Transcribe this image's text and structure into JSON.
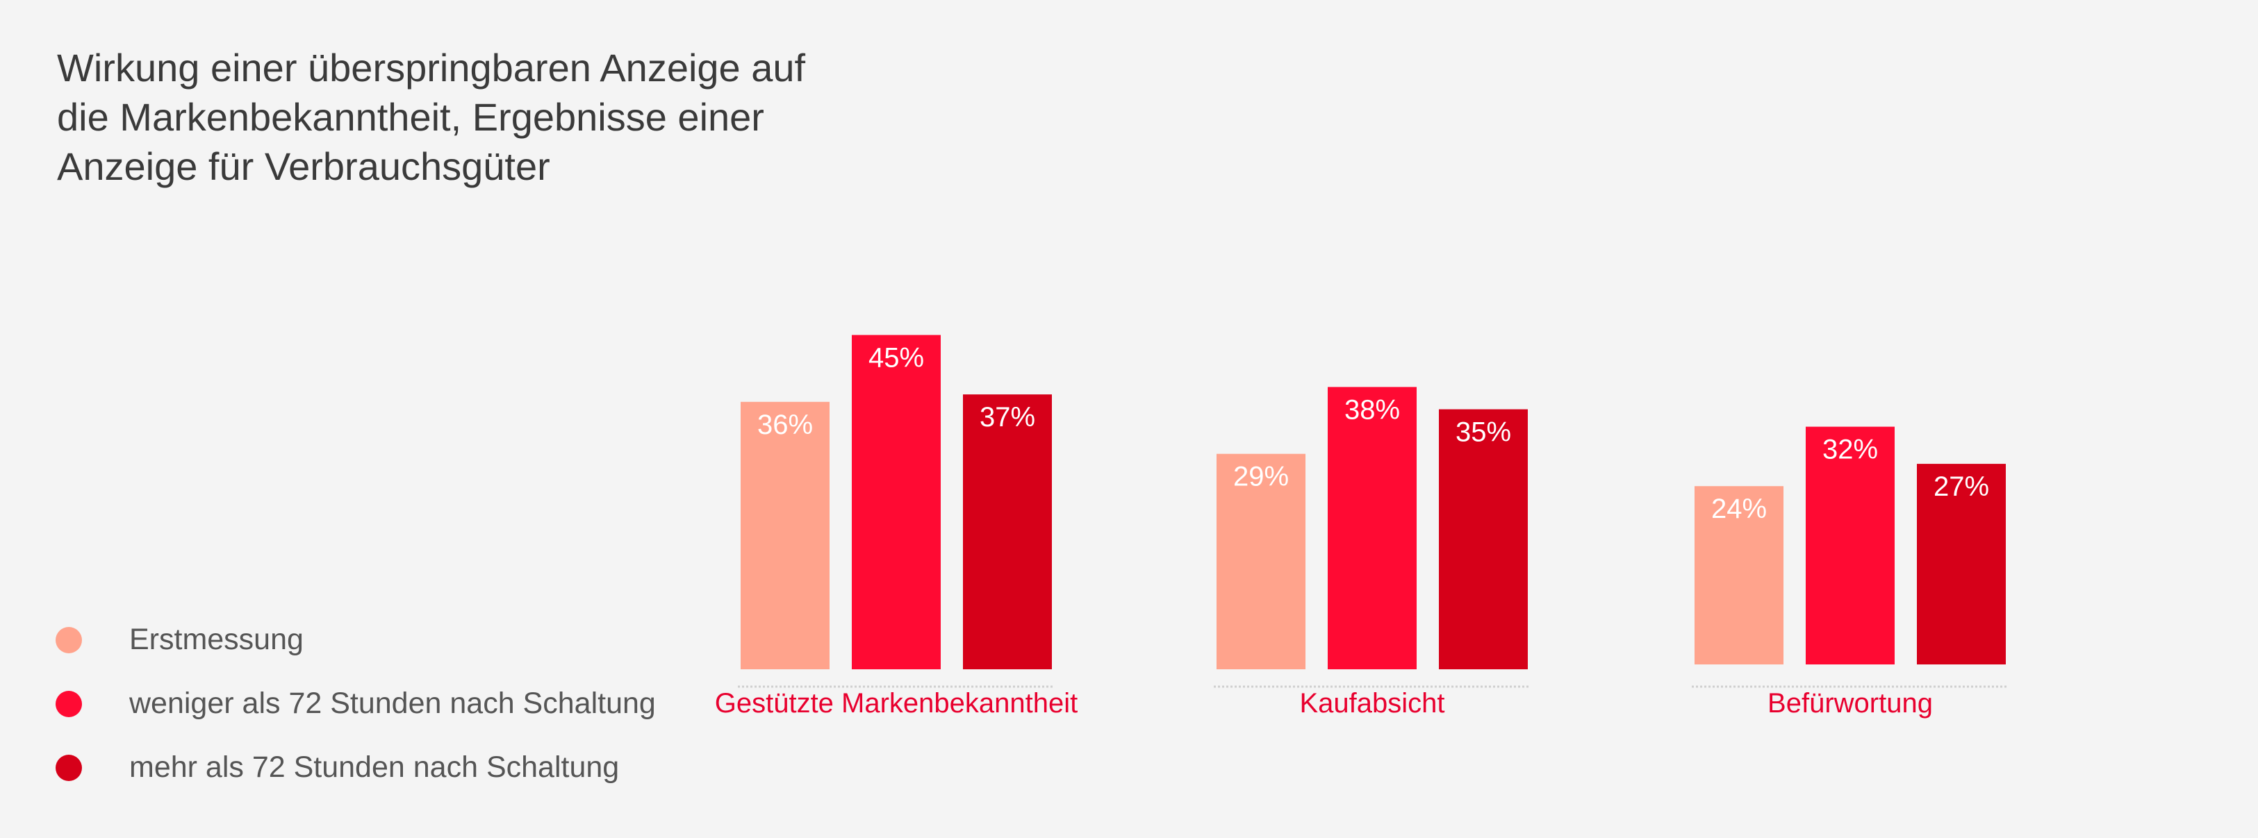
{
  "title_lines": [
    "Wirkung einer überspringbaren Anzeige auf",
    "die Markenbekanntheit, Ergebnisse einer",
    "Anzeige für Verbrauchsgüter"
  ],
  "colors": {
    "baseline": "#ffa38c",
    "under72h": "#ff0a33",
    "over72h": "#d60019",
    "category_label": "#e8002e",
    "value_label": "#ffffff"
  },
  "chart_data": {
    "type": "bar",
    "title": "Wirkung einer überspringbaren Anzeige auf die Markenbekanntheit, Ergebnisse einer Anzeige für Verbrauchsgüter",
    "categories": [
      "Gestützte Markenbekanntheit",
      "Kaufabsicht",
      "Befürwortung"
    ],
    "series": [
      {
        "name": "Erstmessung",
        "values": [
          36,
          29,
          24
        ],
        "labels": [
          "36%",
          "29%",
          "24%"
        ],
        "color": "#ffa38c"
      },
      {
        "name": "weniger als 72 Stunden nach Schaltung",
        "values": [
          45,
          38,
          32
        ],
        "labels": [
          "45%",
          "38%",
          "32%"
        ],
        "color": "#ff0a33"
      },
      {
        "name": "mehr als 72 Stunden nach Schaltung",
        "values": [
          37,
          35,
          27
        ],
        "labels": [
          "37%",
          "35%",
          "27%"
        ],
        "color": "#d60019"
      }
    ],
    "unit": "%",
    "ylim": [
      0,
      45
    ],
    "grid": false,
    "legend_position": "left"
  }
}
